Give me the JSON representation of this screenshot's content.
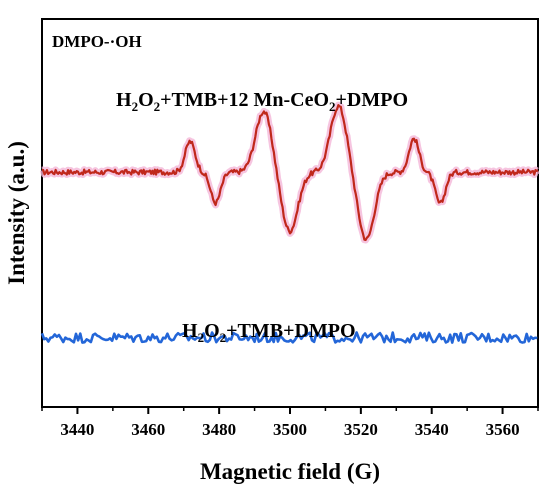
{
  "chart_data": {
    "type": "line",
    "panel_label": "DMPO-·OH",
    "xlabel": "Magnetic field (G)",
    "ylabel": "Intensity (a.u.)",
    "xlim": [
      3430,
      3570
    ],
    "xticks": [
      3440,
      3460,
      3480,
      3500,
      3520,
      3540,
      3560
    ],
    "ylim": [
      -2.3,
      1.5
    ],
    "grid": false,
    "legend": "none",
    "series": [
      {
        "annotation": {
          "prefix1": "H",
          "sub1": "2",
          "mid1": "O",
          "sub2": "2",
          "mid2": "+TMB+12 Mn-CeO",
          "sub3": "2",
          "suffix": "+DMPO"
        },
        "color": "#c0281b",
        "halo": "#f4b6d8",
        "baseline": 0.0,
        "peaks": [
          {
            "center": 3471.8,
            "amplitude": 0.3,
            "width": 1.4
          },
          {
            "center": 3479.0,
            "amplitude": -0.3,
            "width": 1.4
          },
          {
            "center": 3492.6,
            "amplitude": 0.6,
            "width": 2.3
          },
          {
            "center": 3499.9,
            "amplitude": -0.58,
            "width": 2.3
          },
          {
            "center": 3513.7,
            "amplitude": 0.65,
            "width": 2.3
          },
          {
            "center": 3521.5,
            "amplitude": -0.66,
            "width": 2.3
          },
          {
            "center": 3535.0,
            "amplitude": 0.33,
            "width": 1.4
          },
          {
            "center": 3542.4,
            "amplitude": -0.31,
            "width": 1.4
          }
        ],
        "noise_amplitude": 0.025
      },
      {
        "annotation": {
          "prefix1": "H",
          "sub1": "2",
          "mid1": "O",
          "sub2": "2",
          "mid2": "+TMB+DMPO",
          "sub3": "",
          "suffix": ""
        },
        "color": "#2366d8",
        "baseline": -1.62,
        "noise_amplitude": 0.05
      }
    ]
  }
}
